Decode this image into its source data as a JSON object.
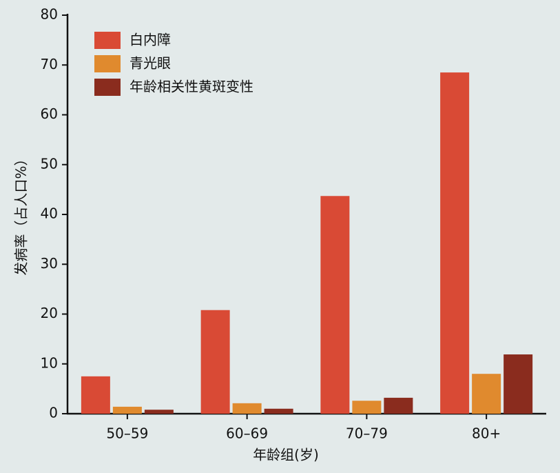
{
  "chart_data": {
    "type": "bar",
    "x_label": "年龄组(岁)",
    "y_label": "发病率（占人口%）",
    "categories": [
      "50–59",
      "60–69",
      "70–79",
      "80+"
    ],
    "series": [
      {
        "name": "白内障",
        "color": "#d94a35",
        "values": [
          7.5,
          20.8,
          43.7,
          68.5
        ]
      },
      {
        "name": "青光眼",
        "color": "#e08a2e",
        "values": [
          1.4,
          2.1,
          2.6,
          8.0
        ]
      },
      {
        "name": "年龄相关性黄斑变性",
        "color": "#8a2c1e",
        "values": [
          0.8,
          1.0,
          3.2,
          11.9
        ]
      }
    ],
    "ylim": [
      0,
      80
    ],
    "yticks": [
      0,
      10,
      20,
      30,
      40,
      50,
      60,
      70,
      80
    ],
    "legend": "upper-left"
  }
}
